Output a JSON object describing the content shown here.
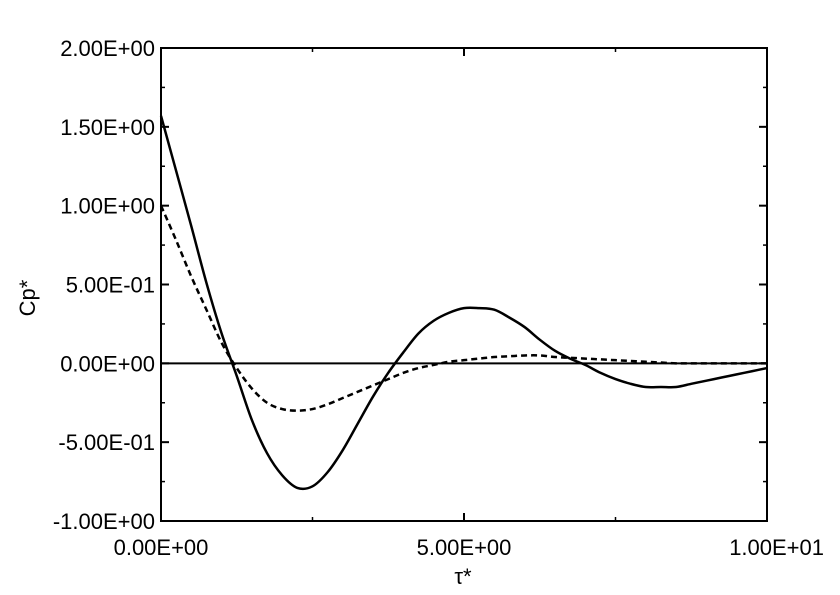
{
  "chart_data": {
    "type": "line",
    "title": "",
    "xlabel": "τ*",
    "ylabel": "Cp*",
    "xlim": [
      0,
      10
    ],
    "ylim": [
      -1.0,
      2.0
    ],
    "grid": false,
    "legend": "none",
    "x_ticks": [
      {
        "value": 0,
        "label": "0.00E+00"
      },
      {
        "value": 5,
        "label": "5.00E+00"
      },
      {
        "value": 10,
        "label": "1.00E+01"
      }
    ],
    "y_ticks": [
      {
        "value": 2.0,
        "label": "2.00E+00"
      },
      {
        "value": 1.5,
        "label": "1.50E+00"
      },
      {
        "value": 1.0,
        "label": "1.00E+00"
      },
      {
        "value": 0.5,
        "label": "5.00E-01"
      },
      {
        "value": 0.0,
        "label": "0.00E+00"
      },
      {
        "value": -0.5,
        "label": "-5.00E-01"
      },
      {
        "value": -1.0,
        "label": "-1.00E+00"
      }
    ],
    "reference_line_y": 0,
    "series": [
      {
        "style": "solid",
        "color": "#000000",
        "x": [
          0.0,
          0.25,
          0.5,
          0.75,
          1.0,
          1.25,
          1.5,
          1.75,
          2.0,
          2.25,
          2.5,
          2.75,
          3.0,
          3.25,
          3.5,
          3.75,
          4.0,
          4.25,
          4.5,
          4.75,
          5.0,
          5.25,
          5.5,
          5.75,
          6.0,
          6.25,
          6.5,
          6.75,
          7.0,
          7.25,
          7.5,
          7.75,
          8.0,
          8.25,
          8.5,
          8.75,
          9.0,
          9.25,
          9.5,
          9.75,
          10.0
        ],
        "y": [
          1.57,
          1.22,
          0.87,
          0.51,
          0.19,
          -0.08,
          -0.36,
          -0.57,
          -0.71,
          -0.79,
          -0.78,
          -0.69,
          -0.55,
          -0.38,
          -0.21,
          -0.06,
          0.07,
          0.19,
          0.27,
          0.32,
          0.35,
          0.35,
          0.34,
          0.29,
          0.23,
          0.15,
          0.08,
          0.03,
          -0.01,
          -0.06,
          -0.1,
          -0.13,
          -0.15,
          -0.15,
          -0.15,
          -0.13,
          -0.11,
          -0.09,
          -0.07,
          -0.05,
          -0.03
        ]
      },
      {
        "style": "dashed",
        "color": "#000000",
        "x": [
          0.0,
          0.25,
          0.5,
          0.75,
          1.0,
          1.25,
          1.5,
          1.75,
          2.0,
          2.25,
          2.5,
          2.75,
          3.0,
          3.25,
          3.5,
          3.75,
          4.0,
          4.25,
          4.5,
          4.75,
          5.0,
          5.25,
          5.5,
          5.75,
          6.0,
          6.25,
          6.5,
          6.75,
          7.0,
          7.25,
          7.5,
          7.75,
          8.0,
          8.25,
          8.5,
          8.75,
          9.0,
          9.25,
          9.5,
          9.75,
          10.0
        ],
        "y": [
          1.0,
          0.78,
          0.55,
          0.34,
          0.13,
          -0.03,
          -0.16,
          -0.25,
          -0.29,
          -0.3,
          -0.29,
          -0.26,
          -0.22,
          -0.18,
          -0.14,
          -0.1,
          -0.06,
          -0.03,
          -0.01,
          0.01,
          0.02,
          0.03,
          0.04,
          0.045,
          0.05,
          0.05,
          0.04,
          0.035,
          0.03,
          0.025,
          0.02,
          0.015,
          0.01,
          0.005,
          0.0,
          0.0,
          0.0,
          0.0,
          0.0,
          0.0,
          0.0
        ]
      }
    ]
  }
}
